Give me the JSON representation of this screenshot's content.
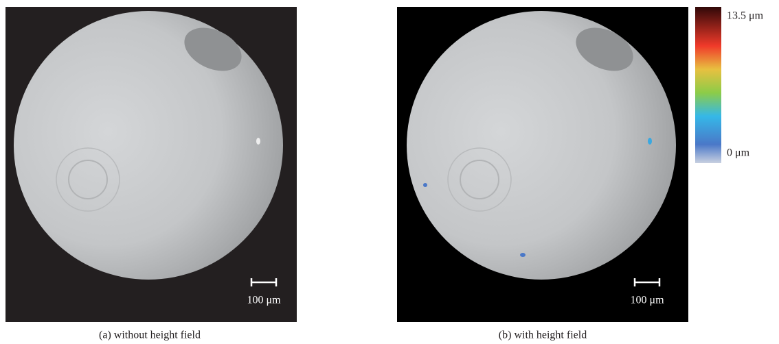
{
  "panels": [
    {
      "caption": "(a) without height field",
      "scale_bar": "100 μm"
    },
    {
      "caption": "(b) with height field",
      "scale_bar": "100 μm"
    }
  ],
  "colorbar": {
    "max_label": "13.5 μm",
    "min_label": "0 μm"
  }
}
